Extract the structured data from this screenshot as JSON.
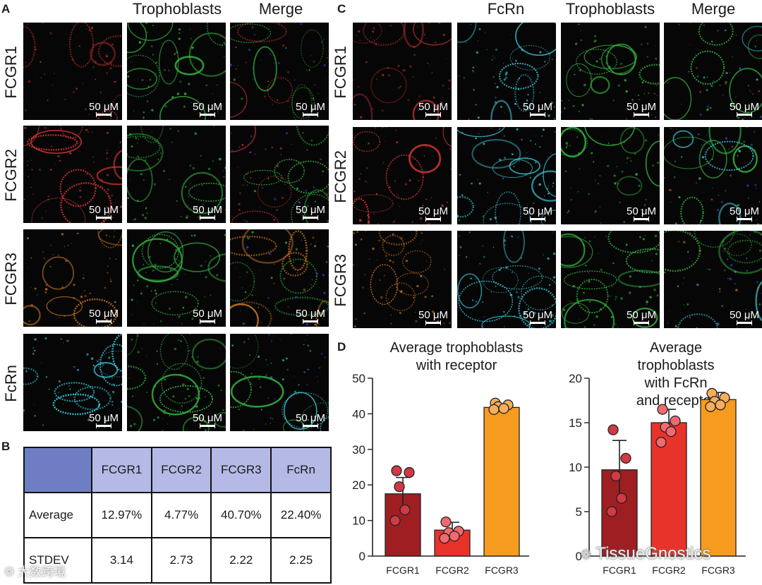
{
  "panels": {
    "a": {
      "letter": "A",
      "column_headers": [
        "Trophoblasts",
        "Merge"
      ],
      "rows": [
        "FCGR1",
        "FCGR2",
        "FCGR3",
        "FcRn"
      ],
      "scale_label": "50 μM"
    },
    "b": {
      "letter": "B"
    },
    "c": {
      "letter": "C",
      "column_headers": [
        "FcRn",
        "Trophoblasts",
        "Merge"
      ],
      "rows": [
        "FCGR1",
        "FCGR2",
        "FCGR3"
      ],
      "scale_label": "50 μM"
    },
    "d": {
      "letter": "D"
    }
  },
  "micrograph_colors": {
    "fcgr1": "#b02a2a",
    "fcgr2": "#d23434",
    "fcgr3": "#c9741e",
    "fcrn": "#3cc8d8",
    "trophoblast": "#33b53f",
    "nucleus": "#4040d0"
  },
  "stats_table": {
    "columns": [
      "",
      "FCGR1",
      "FCGR2",
      "FCGR3",
      "FcRn"
    ],
    "rows": [
      {
        "label": "Average",
        "values": [
          "12.97%",
          "4.77%",
          "40.70%",
          "22.40%"
        ]
      },
      {
        "label": "STDEV",
        "values": [
          "3.14",
          "2.73",
          "2.22",
          "2.25"
        ]
      }
    ],
    "header_color": "#b4b9e6",
    "corner_color": "#6f7ec4"
  },
  "chart_data": [
    {
      "type": "bar",
      "title": "Average trophoblasts\nwith receptor",
      "categories": [
        "FCGR1",
        "FCGR2",
        "FCGR3"
      ],
      "values": [
        17.5,
        7.3,
        41.8
      ],
      "errors": [
        4.6,
        2.2,
        1.0
      ],
      "points": [
        [
          24.0,
          23.5,
          19.5,
          13.0,
          10.0
        ],
        [
          9.6,
          7.0,
          6.6,
          5.6,
          5.0
        ],
        [
          43.0,
          42.5,
          42.0,
          41.5,
          41.2
        ]
      ],
      "colors": [
        "#9f1e22",
        "#e8332b",
        "#f79b1f"
      ],
      "point_colors": [
        "#d13a45",
        "#f16a6f",
        "#f7ad5a"
      ],
      "ylim": [
        0,
        50
      ],
      "yticks": [
        0,
        10,
        20,
        30,
        40,
        50
      ],
      "xlabel": "",
      "ylabel": ""
    },
    {
      "type": "bar",
      "title": "Average trophoblasts\nwith FcRn and receptor",
      "categories": [
        "FCGR1",
        "FCGR2",
        "FCGR3"
      ],
      "values": [
        9.7,
        15.0,
        17.6
      ],
      "errors": [
        3.3,
        1.5,
        0.8
      ],
      "points": [
        [
          14.2,
          11.0,
          9.0,
          6.5,
          5.0
        ],
        [
          16.5,
          15.2,
          14.5,
          14.0,
          12.8
        ],
        [
          18.3,
          17.8,
          17.4,
          17.0,
          16.8
        ]
      ],
      "colors": [
        "#9f1e22",
        "#e8332b",
        "#f79b1f"
      ],
      "point_colors": [
        "#d13a45",
        "#f16a6f",
        "#f7ad5a"
      ],
      "ylim": [
        0,
        20
      ],
      "yticks": [
        0,
        5,
        10,
        15,
        20
      ],
      "xlabel": "",
      "ylabel": ""
    }
  ],
  "watermarks": [
    "TissueGnostics",
    "大数跨境"
  ]
}
